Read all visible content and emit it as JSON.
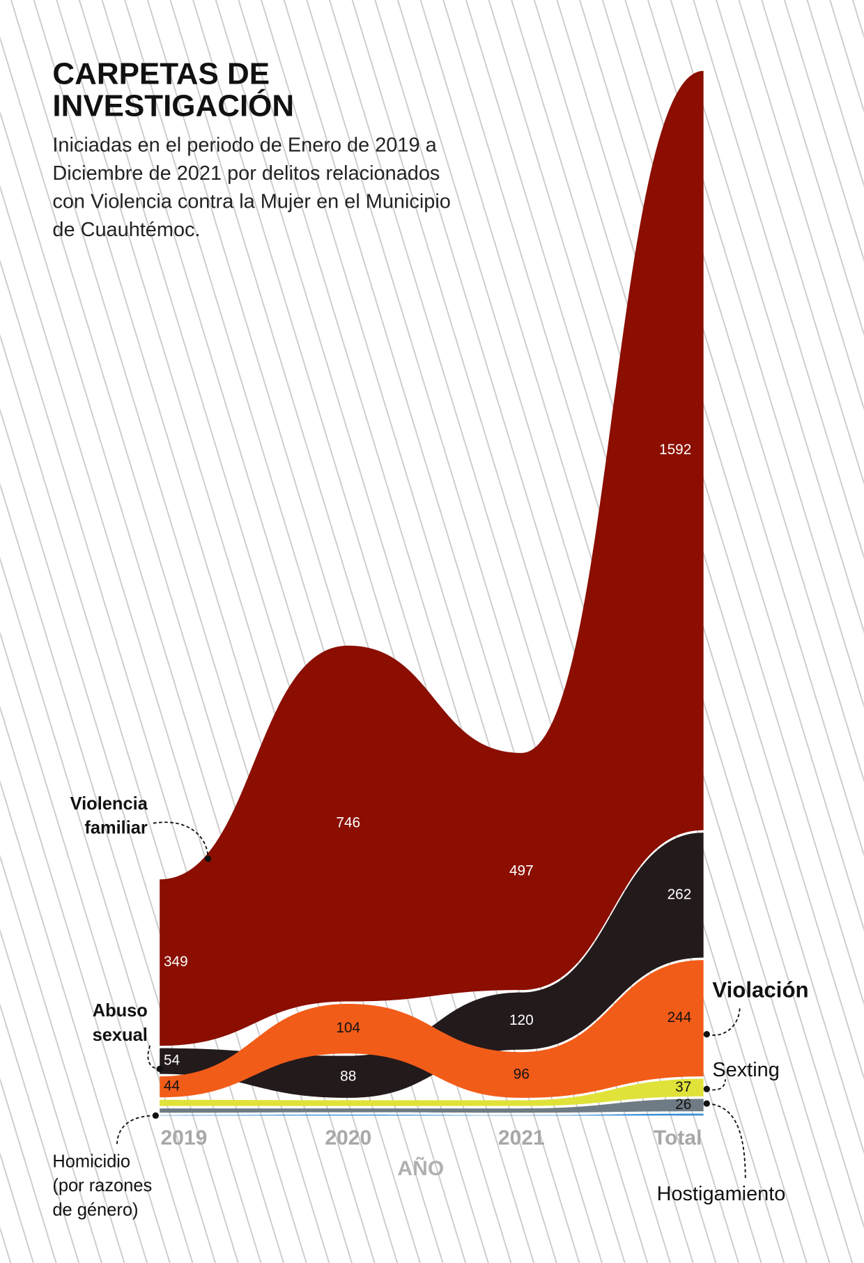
{
  "chart_data": {
    "type": "bump-area",
    "title": "CARPETAS DE INVESTIGACIÓN",
    "subtitle": "Iniciadas en el periodo de Enero de 2019 a Diciembre de 2021 por delitos relacionados con Violencia contra la Mujer en el Municipio de Cuauhtémoc.",
    "x_label": "AÑO",
    "categories": [
      "2019",
      "2020",
      "2021",
      "Total"
    ],
    "series": [
      {
        "name": "Violencia familiar",
        "color": "#8b0e00",
        "values": [
          349,
          746,
          497,
          1592
        ]
      },
      {
        "name": "Abuso sexual",
        "color": "#231a1c",
        "values": [
          54,
          88,
          120,
          262
        ]
      },
      {
        "name": "Violación",
        "color": "#f25c19",
        "values": [
          44,
          104,
          96,
          244
        ]
      },
      {
        "name": "Sexting",
        "color": "#e0e23a",
        "values": [
          13,
          12,
          12,
          37
        ]
      },
      {
        "name": "Hostigamiento",
        "color": "#6e7b84",
        "values": [
          9,
          8,
          9,
          26
        ]
      },
      {
        "name": "Homicidio (por razones de género)",
        "color": "#3a8fd6",
        "values": [
          1,
          2,
          1,
          4
        ]
      }
    ]
  }
}
